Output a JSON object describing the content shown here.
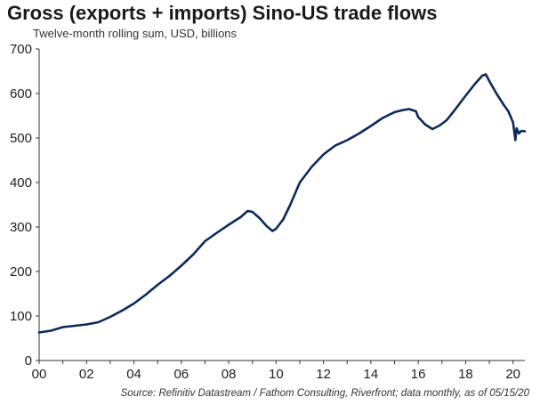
{
  "chart_data": {
    "type": "line",
    "title": "Gross (exports + imports) Sino-US trade flows",
    "subtitle": "Twelve-month rolling sum, USD, billions",
    "source": "Source: Refinitiv Datastream / Fathom Consulting, Riverfront; data monthly, as of 05/15/20",
    "xlabel": "",
    "ylabel": "",
    "xlim": [
      2000,
      2020.5
    ],
    "ylim": [
      0,
      700
    ],
    "x_ticks": [
      2000,
      2002,
      2004,
      2006,
      2008,
      2010,
      2012,
      2014,
      2016,
      2018,
      2020
    ],
    "x_tick_labels": [
      "00",
      "02",
      "04",
      "06",
      "08",
      "10",
      "12",
      "14",
      "16",
      "18",
      "20"
    ],
    "y_ticks": [
      0,
      100,
      200,
      300,
      400,
      500,
      600,
      700
    ],
    "y_tick_labels": [
      "0",
      "100",
      "200",
      "300",
      "400",
      "500",
      "600",
      "700"
    ],
    "grid": false,
    "line_color": "#0b2a5b",
    "series": [
      {
        "name": "",
        "x": [
          2000.0,
          2000.5,
          2001.0,
          2001.5,
          2002.0,
          2002.5,
          2003.0,
          2003.5,
          2004.0,
          2004.5,
          2005.0,
          2005.5,
          2006.0,
          2006.5,
          2007.0,
          2007.5,
          2008.0,
          2008.5,
          2008.8,
          2009.0,
          2009.3,
          2009.6,
          2009.85,
          2010.0,
          2010.3,
          2010.6,
          2011.0,
          2011.5,
          2012.0,
          2012.5,
          2013.0,
          2013.5,
          2014.0,
          2014.5,
          2015.0,
          2015.3,
          2015.6,
          2015.9,
          2016.0,
          2016.3,
          2016.6,
          2016.9,
          2017.2,
          2017.5,
          2018.0,
          2018.4,
          2018.7,
          2018.85,
          2019.0,
          2019.3,
          2019.6,
          2019.8,
          2020.0,
          2020.1,
          2020.15,
          2020.25,
          2020.35,
          2020.5
        ],
        "values": [
          63,
          67,
          75,
          78,
          81,
          86,
          98,
          112,
          128,
          148,
          170,
          190,
          213,
          238,
          268,
          287,
          305,
          322,
          336,
          334,
          320,
          302,
          291,
          296,
          317,
          350,
          400,
          435,
          463,
          483,
          495,
          510,
          527,
          545,
          558,
          562,
          565,
          560,
          547,
          530,
          520,
          528,
          540,
          560,
          595,
          622,
          640,
          643,
          628,
          600,
          575,
          560,
          535,
          495,
          522,
          510,
          516,
          515
        ]
      }
    ]
  }
}
